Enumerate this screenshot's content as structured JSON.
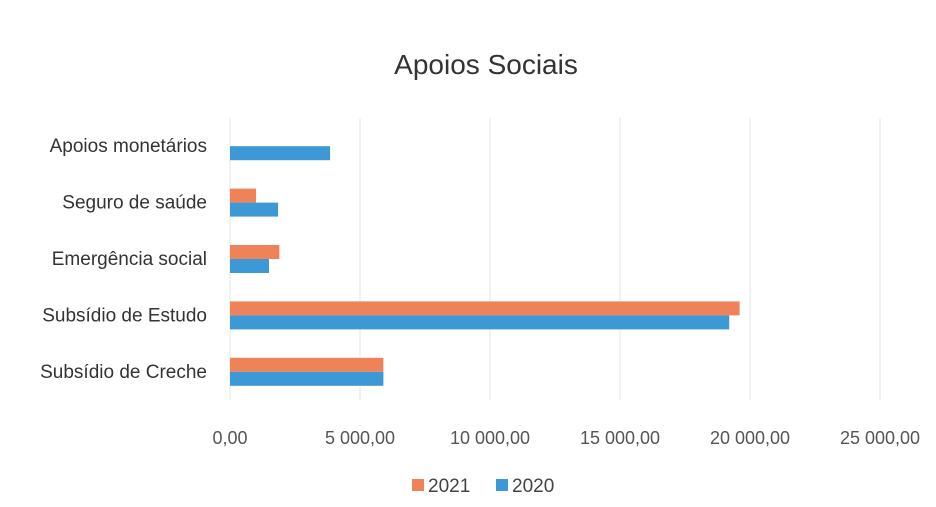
{
  "chart_data": {
    "type": "bar",
    "orientation": "horizontal",
    "title": "Apoios Sociais",
    "categories": [
      "Apoios monetários",
      "Seguro de saúde",
      "Emergência social",
      "Subsídio de Estudo",
      "Subsídio de Creche"
    ],
    "series": [
      {
        "name": "2021",
        "color": "#f0825a",
        "values": [
          0,
          1000,
          1900,
          19600,
          5900
        ]
      },
      {
        "name": "2020",
        "color": "#3d99d6",
        "values": [
          3850,
          1850,
          1500,
          19200,
          5900
        ]
      }
    ],
    "xlim": [
      0,
      25000
    ],
    "ticks": [
      0,
      5000,
      10000,
      15000,
      20000,
      25000
    ],
    "tick_labels": [
      "0,00",
      "5 000,00",
      "10 000,00",
      "15 000,00",
      "20 000,00",
      "25 000,00"
    ],
    "xlabel": "",
    "ylabel": "",
    "grid": true,
    "legend": "bottom-center"
  }
}
